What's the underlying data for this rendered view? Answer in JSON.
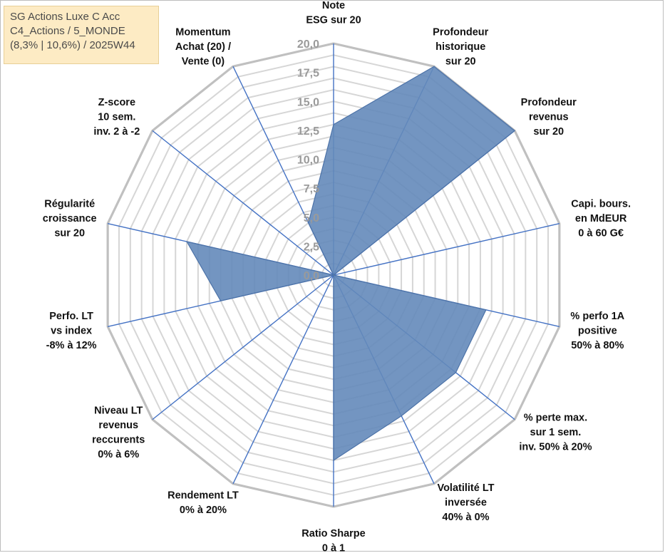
{
  "legend": {
    "line1": "SG Actions Luxe C Acc",
    "line2": "C4_Actions / 5_MONDE",
    "line3": "(8,3% | 10,6%) / 2025W44"
  },
  "chart_data": {
    "type": "radar",
    "rmin": 0,
    "rmax": 20,
    "ticks": [
      "0,0",
      "2,5",
      "5,0",
      "7,5",
      "10,0",
      "12,5",
      "15,0",
      "17,5",
      "20,0"
    ],
    "grid": true,
    "axes": [
      {
        "lines": [
          "Note",
          "ESG sur 20"
        ]
      },
      {
        "lines": [
          "Profondeur",
          "historique",
          "sur 20"
        ]
      },
      {
        "lines": [
          "Profondeur",
          "revenus",
          "sur 20"
        ]
      },
      {
        "lines": [
          "Capi. bours.",
          "en MdEUR",
          "0 à 60 G€"
        ]
      },
      {
        "lines": [
          "% perfo 1A",
          "positive",
          "50% à 80%"
        ]
      },
      {
        "lines": [
          "% perte max.",
          "sur 1 sem.",
          "inv. 50% à 20%"
        ]
      },
      {
        "lines": [
          "Volatilité LT",
          "inversée",
          "40% à 0%"
        ]
      },
      {
        "lines": [
          "Ratio Sharpe",
          "0 à 1"
        ]
      },
      {
        "lines": [
          "Rendement LT",
          "0% à 20%"
        ]
      },
      {
        "lines": [
          "Niveau LT",
          "revenus",
          "reccurents",
          "0% à 6%"
        ]
      },
      {
        "lines": [
          "Perfo. LT",
          "vs index",
          "-8% à 12%"
        ]
      },
      {
        "lines": [
          "Régularité",
          "croissance",
          "sur 20"
        ]
      },
      {
        "lines": [
          "Z-score",
          "10 sem.",
          "inv. 2 à -2"
        ]
      },
      {
        "lines": [
          "Momentum",
          "Achat (20) /",
          "Vente (0)"
        ]
      }
    ],
    "series": [
      {
        "values": [
          13,
          20,
          20,
          0,
          13.5,
          13.5,
          13.5,
          16,
          0,
          0,
          10,
          13,
          0,
          5
        ]
      }
    ],
    "colors": {
      "fill": "#6489ba",
      "stroke": "#4d73a8",
      "spokes": "#4472c4",
      "grid_outer": "#c0c0c0",
      "grid_inner": "#d6d6d6"
    }
  }
}
